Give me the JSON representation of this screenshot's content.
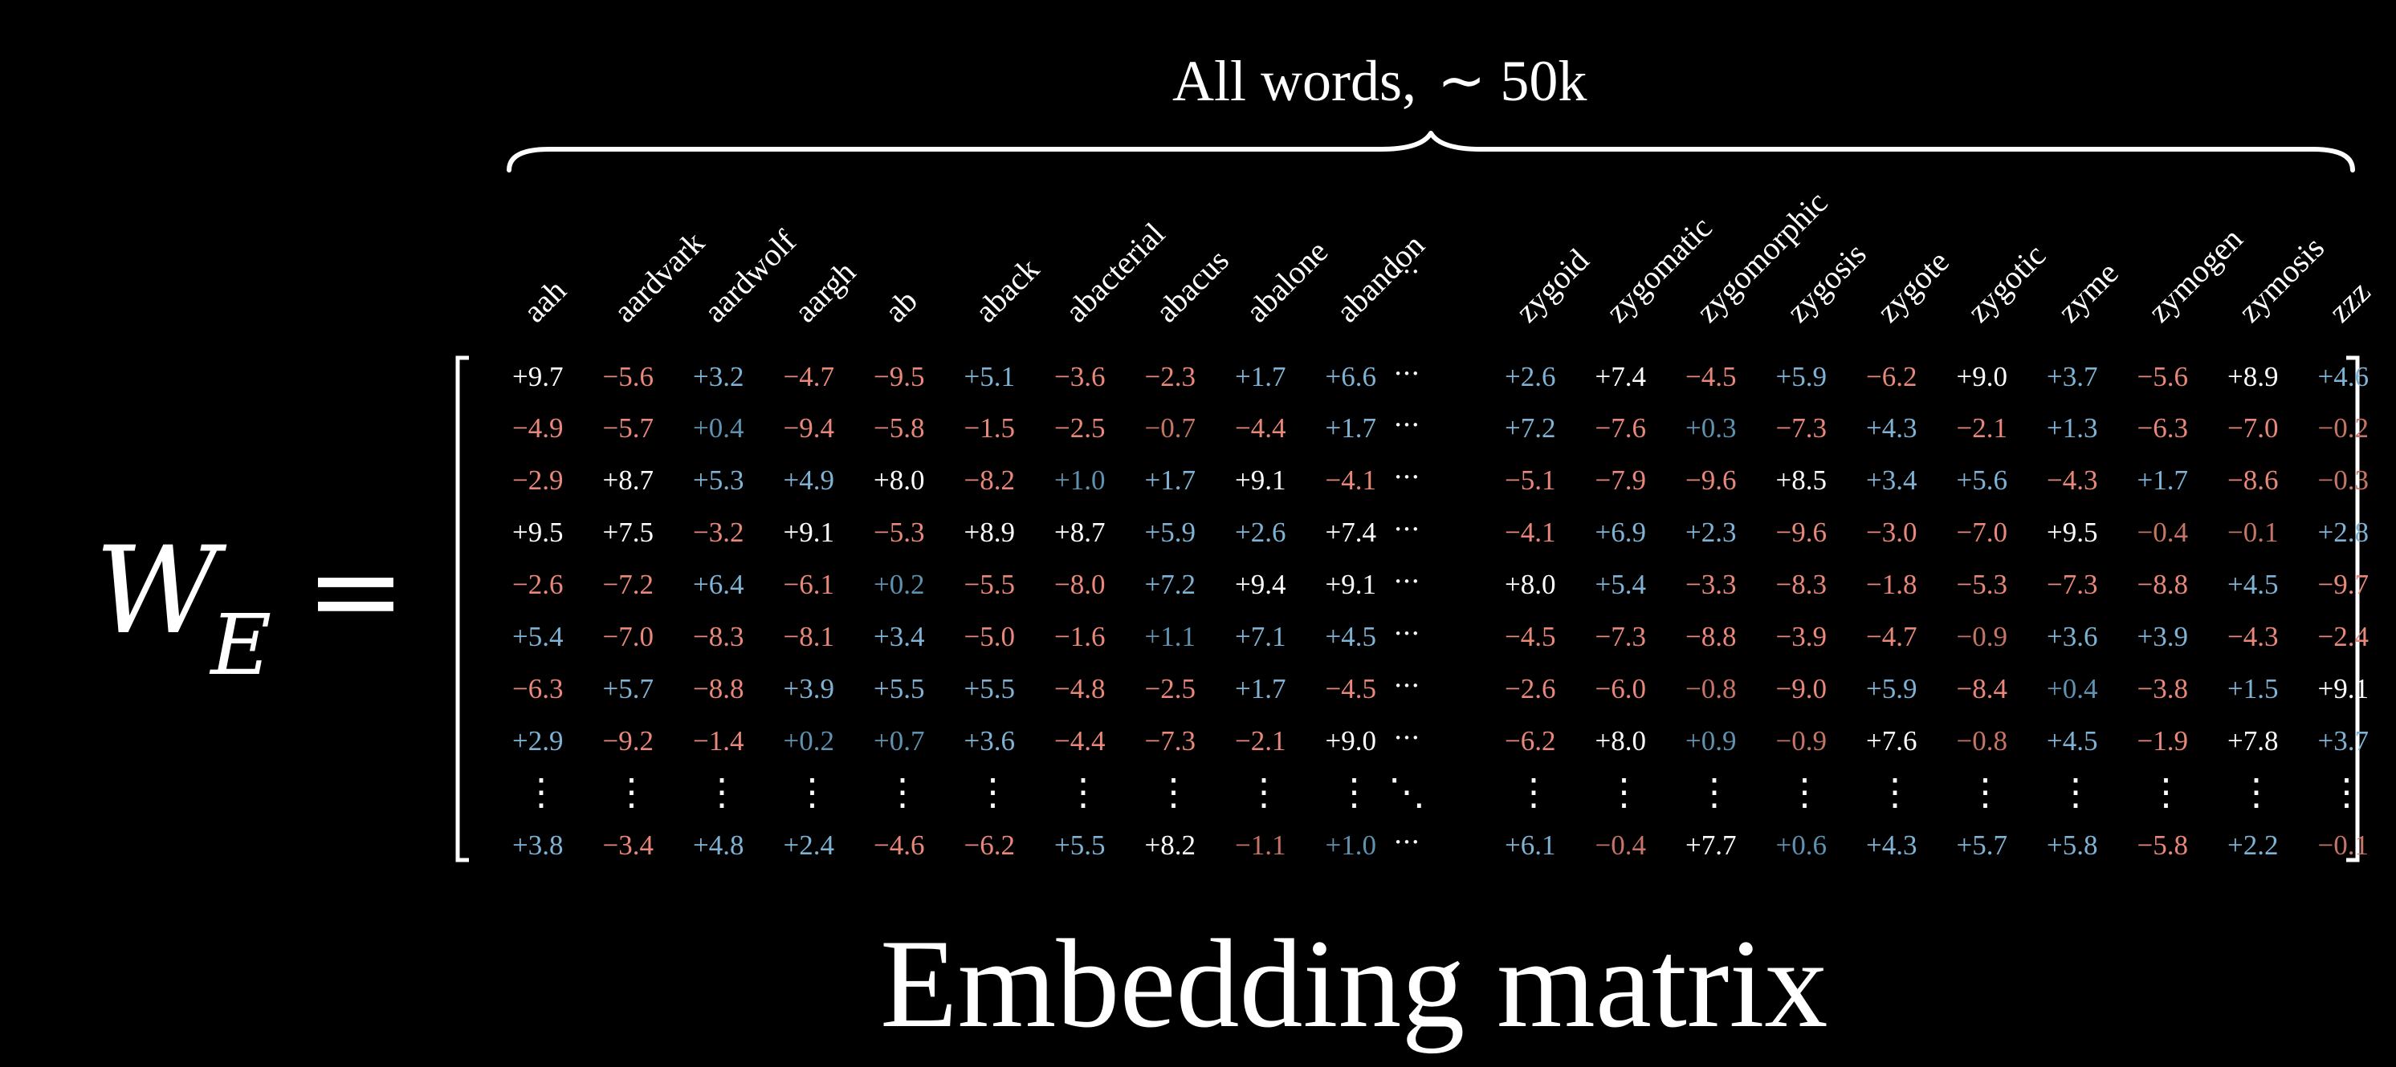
{
  "header": {
    "label": "All words,",
    "approx": "∼ 50k"
  },
  "lhs": {
    "symbol": "W",
    "subscript": "E",
    "equals": "="
  },
  "footer": {
    "title": "Embedding matrix"
  },
  "ellipsis": {
    "horizontal": "···",
    "vertical": "⋮",
    "diagonal": "⋱"
  },
  "colors": {
    "positive": "#7fb3d5",
    "negative": "#e8877a",
    "bright": "#ffffff",
    "muted_positive": "#5f92b0",
    "muted_negative": "#c57466"
  },
  "columns_left": [
    "aah",
    "aardvark",
    "aardwolf",
    "aargh",
    "ab",
    "aback",
    "abacterial",
    "abacus",
    "abalone",
    "abandon"
  ],
  "columns_right": [
    "zygoid",
    "zygomatic",
    "zygomorphic",
    "zygosis",
    "zygote",
    "zygotic",
    "zyme",
    "zymogen",
    "zymosis",
    "zzz"
  ],
  "rows": [
    [
      "+9.7",
      "−5.6",
      "+3.2",
      "−4.7",
      "−9.5",
      "+5.1",
      "−3.6",
      "−2.3",
      "+1.7",
      "+6.6",
      "+2.6",
      "+7.4",
      "−4.5",
      "+5.9",
      "−6.2",
      "+9.0",
      "+3.7",
      "−5.6",
      "+8.9",
      "+4.6"
    ],
    [
      "−4.9",
      "−5.7",
      "+0.4",
      "−9.4",
      "−5.8",
      "−1.5",
      "−2.5",
      "−0.7",
      "−4.4",
      "+1.7",
      "+7.2",
      "−7.6",
      "+0.3",
      "−7.3",
      "+4.3",
      "−2.1",
      "+1.3",
      "−6.3",
      "−7.0",
      "−0.2"
    ],
    [
      "−2.9",
      "+8.7",
      "+5.3",
      "+4.9",
      "+8.0",
      "−8.2",
      "+1.0",
      "+1.7",
      "+9.1",
      "−4.1",
      "−5.1",
      "−7.9",
      "−9.6",
      "+8.5",
      "+3.4",
      "+5.6",
      "−4.3",
      "+1.7",
      "−8.6",
      "−0.3"
    ],
    [
      "+9.5",
      "+7.5",
      "−3.2",
      "+9.1",
      "−5.3",
      "+8.9",
      "+8.7",
      "+5.9",
      "+2.6",
      "+7.4",
      "−4.1",
      "+6.9",
      "+2.3",
      "−9.6",
      "−3.0",
      "−7.0",
      "+9.5",
      "−0.4",
      "−0.1",
      "+2.8"
    ],
    [
      "−2.6",
      "−7.2",
      "+6.4",
      "−6.1",
      "+0.2",
      "−5.5",
      "−8.0",
      "+7.2",
      "+9.4",
      "+9.1",
      "+8.0",
      "+5.4",
      "−3.3",
      "−8.3",
      "−1.8",
      "−5.3",
      "−7.3",
      "−8.8",
      "+4.5",
      "−9.7"
    ],
    [
      "+5.4",
      "−7.0",
      "−8.3",
      "−8.1",
      "+3.4",
      "−5.0",
      "−1.6",
      "+1.1",
      "+7.1",
      "+4.5",
      "−4.5",
      "−7.3",
      "−8.8",
      "−3.9",
      "−4.7",
      "−0.9",
      "+3.6",
      "+3.9",
      "−4.3",
      "−2.4"
    ],
    [
      "−6.3",
      "+5.7",
      "−8.8",
      "+3.9",
      "+5.5",
      "+5.5",
      "−4.8",
      "−2.5",
      "+1.7",
      "−4.5",
      "−2.6",
      "−6.0",
      "−0.8",
      "−9.0",
      "+5.9",
      "−8.4",
      "+0.4",
      "−3.8",
      "+1.5",
      "+9.1"
    ],
    [
      "+2.9",
      "−9.2",
      "−1.4",
      "+0.2",
      "+0.7",
      "+3.6",
      "−4.4",
      "−7.3",
      "−2.1",
      "+9.0",
      "−6.2",
      "+8.0",
      "+0.9",
      "−0.9",
      "+7.6",
      "−0.8",
      "+4.5",
      "−1.9",
      "+7.8",
      "+3.7"
    ]
  ],
  "last_row": [
    "+3.8",
    "−3.4",
    "+4.8",
    "+2.4",
    "−4.6",
    "−6.2",
    "+5.5",
    "+8.2",
    "−1.1",
    "+1.0",
    "+6.1",
    "−0.4",
    "+7.7",
    "+0.6",
    "+4.3",
    "+5.7",
    "+5.8",
    "−5.8",
    "+2.2",
    "−0.1"
  ]
}
